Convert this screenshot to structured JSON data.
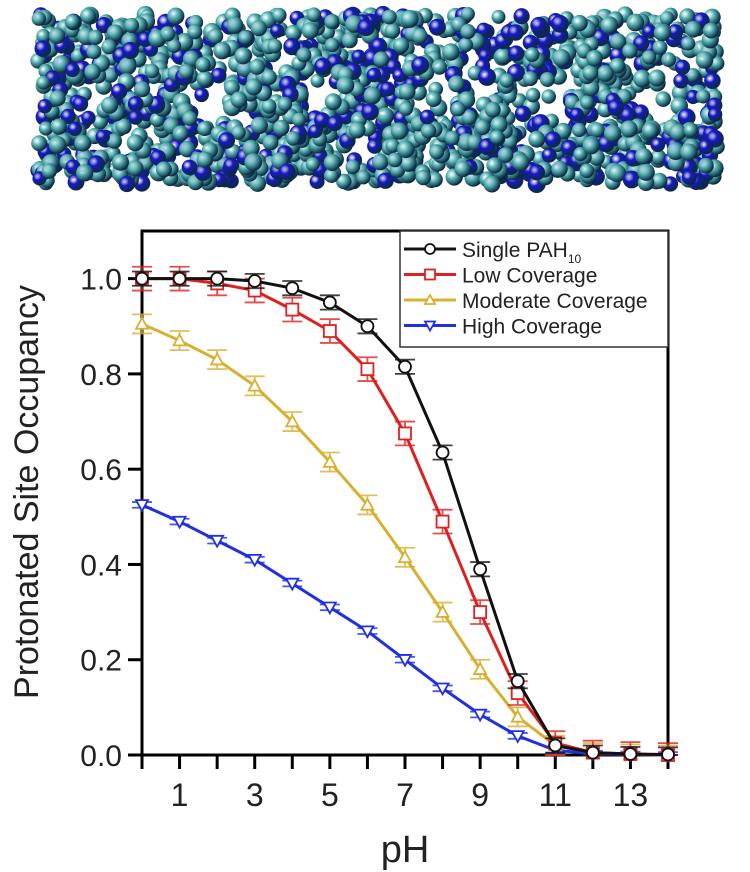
{
  "figure": {
    "top_image": "molecular-nanotube-rendering",
    "atom_colors": [
      "#5bb8b8",
      "#1818c8"
    ]
  },
  "chart_data": {
    "type": "line",
    "title": "",
    "xlabel": "pH",
    "ylabel": "Protonated Site Occupancy",
    "xlim": [
      0,
      14
    ],
    "ylim": [
      0,
      1.1
    ],
    "x": [
      0,
      1,
      2,
      3,
      4,
      5,
      6,
      7,
      8,
      9,
      10,
      11,
      12,
      13,
      14
    ],
    "xticks": [
      1,
      3,
      5,
      7,
      9,
      11,
      13
    ],
    "yticks": [
      "0.0",
      "0.2",
      "0.4",
      "0.6",
      "0.8",
      "1.0"
    ],
    "grid": false,
    "legend_position": "top-right",
    "series": [
      {
        "name": "Single PAH",
        "subscript": "10",
        "color": "#111111",
        "marker": "circle",
        "error": 0.015,
        "values": [
          1.0,
          1.0,
          1.0,
          0.995,
          0.98,
          0.95,
          0.9,
          0.815,
          0.635,
          0.39,
          0.155,
          0.02,
          0.005,
          0.002,
          0.001
        ]
      },
      {
        "name": "Low Coverage",
        "subscript": "",
        "color": "#e02020",
        "marker": "square",
        "error": 0.025,
        "values": [
          1.0,
          1.0,
          0.99,
          0.975,
          0.935,
          0.89,
          0.81,
          0.675,
          0.49,
          0.3,
          0.13,
          0.025,
          0.005,
          0.002,
          0.0
        ]
      },
      {
        "name": "Moderate Coverage",
        "subscript": "",
        "color": "#d8b030",
        "marker": "triangle-up",
        "error": 0.02,
        "values": [
          0.905,
          0.87,
          0.83,
          0.775,
          0.7,
          0.615,
          0.525,
          0.415,
          0.3,
          0.18,
          0.08,
          0.02,
          0.005,
          0.002,
          0.0
        ]
      },
      {
        "name": "High Coverage",
        "subscript": "",
        "color": "#2030e0",
        "marker": "triangle-down",
        "error": 0.006,
        "values": [
          0.525,
          0.49,
          0.45,
          0.41,
          0.36,
          0.31,
          0.26,
          0.2,
          0.14,
          0.085,
          0.04,
          0.01,
          0.003,
          0.001,
          0.0
        ]
      }
    ]
  }
}
